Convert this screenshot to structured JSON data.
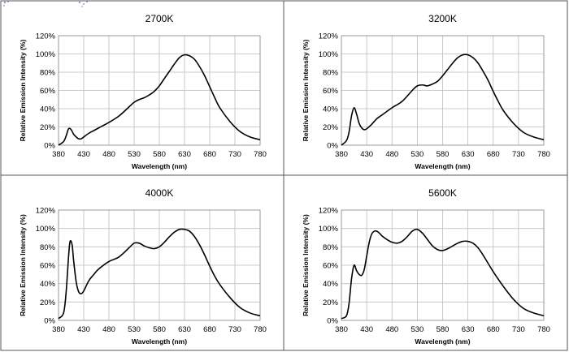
{
  "chart_data": [
    {
      "type": "line",
      "title": "2700K",
      "xlabel": "Wavelength (nm)",
      "ylabel": "Relative Emission Intensity (%)",
      "xlim": [
        380,
        780
      ],
      "ylim": [
        0,
        120
      ],
      "x_ticks": [
        380,
        430,
        480,
        530,
        580,
        630,
        680,
        730,
        780
      ],
      "y_ticks": [
        "0%",
        "20%",
        "40%",
        "60%",
        "80%",
        "100%",
        "120%"
      ],
      "grid": true,
      "series": [
        {
          "x": [
            380,
            390,
            395,
            400,
            405,
            410,
            415,
            420,
            425,
            430,
            440,
            450,
            460,
            480,
            500,
            520,
            530,
            540,
            550,
            560,
            570,
            580,
            590,
            600,
            610,
            620,
            630,
            640,
            650,
            660,
            670,
            680,
            690,
            700,
            720,
            740,
            760,
            780
          ],
          "y": [
            0,
            4,
            10,
            18,
            17,
            12,
            9,
            7,
            7,
            9,
            13,
            16,
            19,
            25,
            32,
            42,
            47,
            50,
            52,
            55,
            59,
            65,
            73,
            81,
            89,
            96,
            99,
            98,
            94,
            86,
            76,
            64,
            52,
            41,
            26,
            15,
            9,
            6
          ]
        }
      ]
    },
    {
      "type": "line",
      "title": "3200K",
      "xlabel": "Wavelength (nm)",
      "ylabel": "Relative Emission Intensity (%)",
      "xlim": [
        380,
        780
      ],
      "ylim": [
        0,
        120
      ],
      "x_ticks": [
        380,
        430,
        480,
        530,
        580,
        630,
        680,
        730,
        780
      ],
      "y_ticks": [
        "0%",
        "20%",
        "40%",
        "60%",
        "80%",
        "100%",
        "120%"
      ],
      "grid": true,
      "series": [
        {
          "x": [
            380,
            390,
            395,
            400,
            405,
            410,
            415,
            420,
            425,
            430,
            440,
            450,
            460,
            480,
            500,
            520,
            530,
            540,
            550,
            560,
            570,
            580,
            590,
            600,
            610,
            620,
            630,
            640,
            650,
            660,
            670,
            680,
            690,
            700,
            720,
            740,
            760,
            780
          ],
          "y": [
            0,
            5,
            14,
            32,
            41,
            34,
            24,
            19,
            17,
            18,
            23,
            29,
            33,
            41,
            48,
            60,
            65,
            66,
            65,
            67,
            70,
            76,
            83,
            90,
            96,
            99,
            99,
            96,
            90,
            81,
            71,
            59,
            48,
            38,
            24,
            14,
            9,
            6
          ]
        }
      ]
    },
    {
      "type": "line",
      "title": "4000K",
      "xlabel": "Wavelength (nm)",
      "ylabel": "Relative Emission Intensity (%)",
      "xlim": [
        380,
        780
      ],
      "ylim": [
        0,
        120
      ],
      "x_ticks": [
        380,
        430,
        480,
        530,
        580,
        630,
        680,
        730,
        780
      ],
      "y_ticks": [
        "0%",
        "20%",
        "40%",
        "60%",
        "80%",
        "100%",
        "120%"
      ],
      "grid": true,
      "series": [
        {
          "x": [
            380,
            390,
            395,
            400,
            403,
            407,
            410,
            415,
            420,
            425,
            430,
            440,
            450,
            460,
            480,
            500,
            520,
            530,
            540,
            550,
            560,
            570,
            580,
            590,
            600,
            610,
            620,
            630,
            640,
            650,
            660,
            670,
            680,
            690,
            700,
            720,
            740,
            760,
            780
          ],
          "y": [
            2,
            8,
            30,
            70,
            86,
            82,
            65,
            42,
            31,
            29,
            32,
            43,
            50,
            56,
            64,
            69,
            79,
            84,
            84,
            81,
            79,
            78,
            80,
            85,
            91,
            96,
            99,
            99,
            97,
            91,
            82,
            71,
            59,
            48,
            39,
            25,
            14,
            8,
            5
          ]
        }
      ]
    },
    {
      "type": "line",
      "title": "5600K",
      "xlabel": "Wavelength (nm)",
      "ylabel": "Relative Emission Intensity (%)",
      "xlim": [
        380,
        780
      ],
      "ylim": [
        0,
        120
      ],
      "x_ticks": [
        380,
        430,
        480,
        530,
        580,
        630,
        680,
        730,
        780
      ],
      "y_ticks": [
        "0%",
        "20%",
        "40%",
        "60%",
        "80%",
        "100%",
        "120%"
      ],
      "grid": true,
      "series": [
        {
          "x": [
            380,
            390,
            395,
            400,
            405,
            410,
            415,
            420,
            425,
            430,
            435,
            440,
            445,
            450,
            455,
            460,
            470,
            480,
            490,
            500,
            510,
            520,
            530,
            540,
            550,
            560,
            570,
            580,
            590,
            600,
            610,
            620,
            630,
            640,
            650,
            660,
            670,
            680,
            700,
            720,
            740,
            760,
            780
          ],
          "y": [
            2,
            5,
            18,
            45,
            60,
            54,
            50,
            49,
            55,
            70,
            85,
            94,
            97,
            97,
            95,
            92,
            88,
            85,
            84,
            86,
            91,
            97,
            99,
            95,
            88,
            81,
            77,
            76,
            78,
            81,
            84,
            86,
            86,
            84,
            79,
            71,
            62,
            53,
            37,
            23,
            13,
            8,
            5
          ]
        }
      ]
    }
  ]
}
